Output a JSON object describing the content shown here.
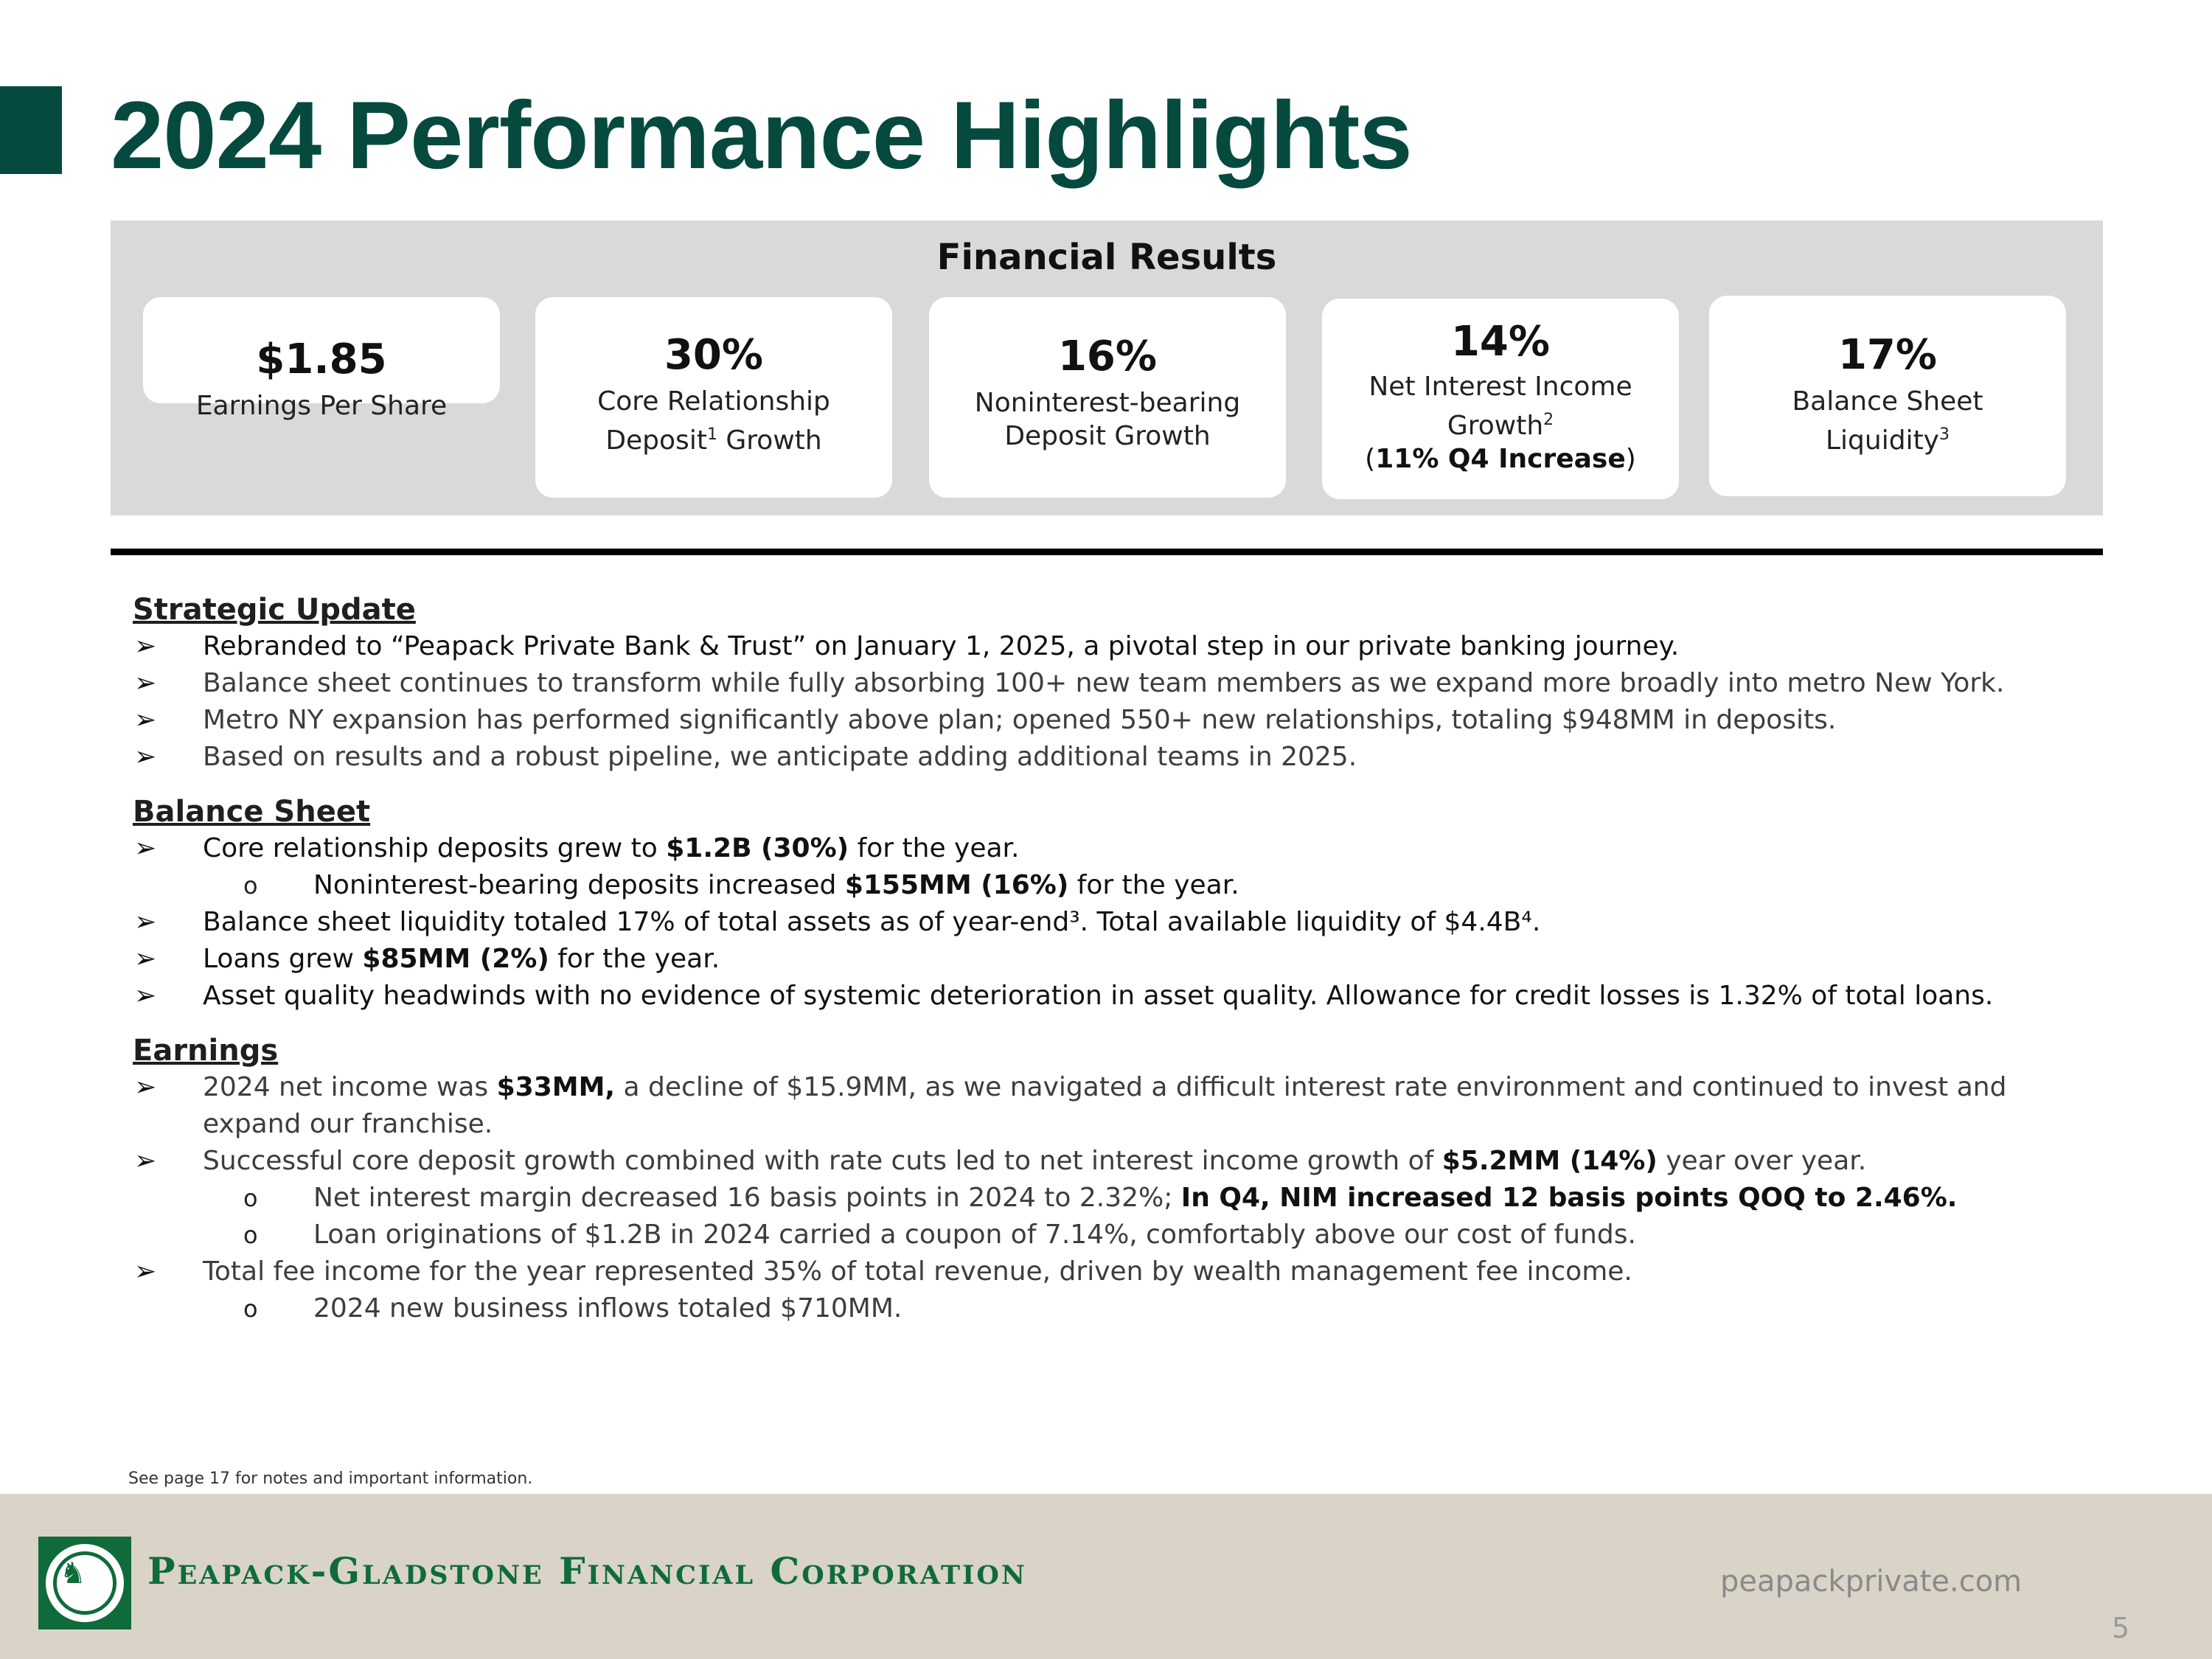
{
  "title": "2024 Performance Highlights",
  "financial_results": {
    "heading": "Financial Results",
    "cards": [
      {
        "value": "$1.85",
        "label": "Earnings Per Share"
      },
      {
        "value": "30%",
        "label_line1": "Core Relationship",
        "label_line2": "Deposit",
        "label_sup": "1",
        "label_line2_end": " Growth"
      },
      {
        "value": "16%",
        "label_line1": "Noninterest-bearing",
        "label_line2": "Deposit Growth"
      },
      {
        "value": "14%",
        "label_line1": "Net Interest Income",
        "label_line2": "Growth",
        "label_sup": "2",
        "extra_open": "(",
        "extra_bold": "11% Q4 Increase",
        "extra_close": ")"
      },
      {
        "value": "17%",
        "label_line1": "Balance Sheet",
        "label_line2": "Liquidity",
        "label_sup": "3"
      }
    ]
  },
  "sections": {
    "strategic": {
      "heading": "Strategic Update",
      "bullets": [
        "Rebranded to “Peapack Private Bank & Trust” on January 1, 2025, a pivotal step in our private banking journey.",
        "Balance sheet continues to transform while fully absorbing 100+ new team members as we expand more broadly into metro New York.",
        "Metro NY expansion has performed significantly above plan; opened 550+ new relationships, totaling $948MM in deposits.",
        "Based on results and a robust pipeline, we anticipate adding additional teams in 2025."
      ]
    },
    "balance": {
      "heading": "Balance Sheet",
      "b1_pre": "Core relationship deposits grew to ",
      "b1_bold": "$1.2B (30%)",
      "b1_post": " for the year.",
      "b1_sub_pre": "Noninterest-bearing deposits increased ",
      "b1_sub_bold": "$155MM (16%)",
      "b1_sub_post": " for the year.",
      "b2": "Balance sheet liquidity totaled 17% of total assets as of year-end³. Total available liquidity of $4.4B⁴.",
      "b3_pre": "Loans grew ",
      "b3_bold": "$85MM (2%)",
      "b3_post": " for the year.",
      "b4": "Asset quality headwinds with no evidence of systemic deterioration in asset quality. Allowance for credit losses is 1.32% of total loans."
    },
    "earnings": {
      "heading": "Earnings",
      "b1_pre": "2024 net income was ",
      "b1_bold": "$33MM,",
      "b1_post": " a decline of $15.9MM, as we navigated a difficult interest rate environment and continued to invest and expand our franchise.",
      "b2_pre": "Successful core deposit growth combined with rate cuts led to net interest income growth of ",
      "b2_bold": "$5.2MM (14%)",
      "b2_post": " year over year.",
      "b2_sub1_pre": "Net interest margin decreased 16 basis points in 2024 to 2.32%; ",
      "b2_sub1_bold": "In Q4, NIM increased 12 basis points QOQ to 2.46%.",
      "b2_sub2": "Loan originations of $1.2B in 2024 carried a coupon of 7.14%, comfortably above our cost of funds.",
      "b3": "Total fee income for the year represented 35% of total revenue, driven by wealth management fee income.",
      "b3_sub": "2024 new business inflows totaled $710MM."
    }
  },
  "markers": {
    "bullet": "➢",
    "sub": "o"
  },
  "footnote": "See page 17 for notes and important information.",
  "footer": {
    "company": "Peapack-Gladstone Financial Corporation",
    "website": "peapackprivate.com",
    "page_number": "5"
  },
  "colors": {
    "brand_green": "#064a3f",
    "logo_green": "#0f6b3a",
    "panel_gray": "#d9d9d9",
    "footer_beige": "#d9d3c8"
  }
}
